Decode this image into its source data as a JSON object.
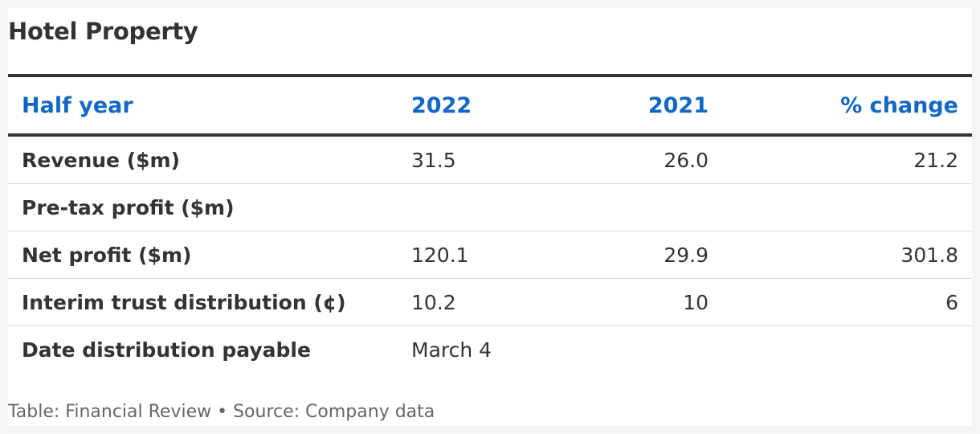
{
  "title": "Hotel Property",
  "table": {
    "headers": [
      "Half year",
      "2022",
      "2021",
      "% change"
    ],
    "rows": [
      [
        "Revenue ($m)",
        "31.5",
        "26.0",
        "21.2"
      ],
      [
        "Pre-tax profit ($m)",
        "",
        "",
        ""
      ],
      [
        "Net profit ($m)",
        "120.1",
        "29.9",
        "301.8"
      ],
      [
        "Interim trust distribution (¢)",
        "10.2",
        "10",
        "6"
      ],
      [
        "Date distribution payable",
        "March 4",
        "",
        ""
      ]
    ]
  },
  "footer": "Table: Financial Review • Source: Company data",
  "colors": {
    "header_text": "#1268c4",
    "body_text": "#333333",
    "rule": "#333333",
    "row_divider": "#dcdcdc",
    "footer_text": "#666666"
  }
}
